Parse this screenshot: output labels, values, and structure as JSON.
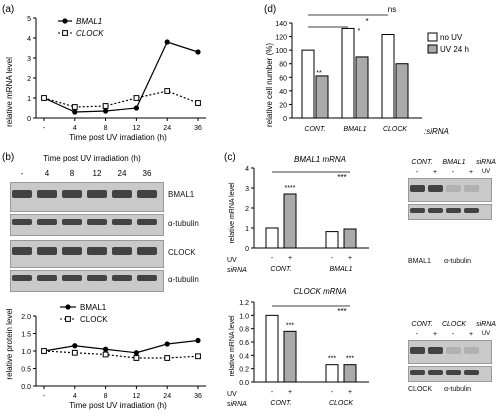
{
  "panel_a": {
    "letter": "(a)",
    "xlabel": "Time post UV irradiation (h)",
    "ylabel": "relative mRNA level",
    "legend": [
      "BMAL1",
      "CLOCK"
    ]
  },
  "panel_b": {
    "letter": "(b)",
    "title": "Time post UV irradiation (h)",
    "lanes": [
      "-",
      "4",
      "8",
      "12",
      "24",
      "36"
    ],
    "blot_labels": [
      "BMAL1",
      "α-tubulin",
      "CLOCK",
      "α-tubulin"
    ],
    "xlabel": "Time post UV irradiation (h)",
    "ylabel": "relative protein level",
    "legend": [
      "BMAL1",
      "CLOCK"
    ]
  },
  "panel_c": {
    "letter": "(c)",
    "top_title": "BMAL1 mRNA",
    "bottom_title": "CLOCK mRNA",
    "ylabel": "relative mRNA level",
    "uv_label": "UV",
    "sirna_label": "siRNA",
    "groups_top": [
      "CONT.",
      "BMAL1"
    ],
    "groups_bottom": [
      "CONT.",
      "CLOCK"
    ],
    "uv_signs": [
      "-",
      "+",
      "-",
      "+"
    ],
    "stars_top": [
      "****",
      "***"
    ],
    "stars_bottom": [
      "***",
      "***",
      "***",
      "***"
    ],
    "blot_top": {
      "header": [
        "CONT.",
        "BMAL1",
        "siRNA"
      ],
      "signs": [
        "-",
        "+",
        "-",
        "+"
      ],
      "uv": "UV",
      "labels": [
        "BMAL1",
        "α-tubulin"
      ]
    },
    "blot_bottom": {
      "header": [
        "CONT.",
        "CLOCK",
        "siRNA"
      ],
      "signs": [
        "-",
        "+",
        "-",
        "+"
      ],
      "uv": "UV",
      "labels": [
        "CLOCK",
        "α-tubulin"
      ]
    }
  },
  "panel_d": {
    "letter": "(d)",
    "ylabel": "relative cell number (%)",
    "groups": [
      "CONT.",
      "BMAL1",
      "CLOCK"
    ],
    "sirna_label": ":siRNA",
    "legend": [
      "no UV",
      "UV 24 h"
    ],
    "sig": [
      "ns",
      "*",
      "**",
      "*"
    ]
  },
  "chart_data": [
    {
      "type": "line",
      "panel": "a",
      "x": [
        "-",
        "4",
        "8",
        "12",
        "24",
        "36"
      ],
      "series": [
        {
          "name": "BMAL1",
          "values": [
            1.0,
            0.3,
            0.35,
            0.5,
            3.8,
            3.3
          ]
        },
        {
          "name": "CLOCK",
          "values": [
            1.0,
            0.55,
            0.6,
            1.0,
            1.35,
            0.75
          ]
        }
      ],
      "ylim": [
        0,
        5
      ],
      "yticks": [
        0,
        1,
        2,
        3,
        4,
        5
      ]
    },
    {
      "type": "line",
      "panel": "b",
      "x": [
        "-",
        "4",
        "8",
        "12",
        "24",
        "36"
      ],
      "series": [
        {
          "name": "BMAL1",
          "values": [
            1.0,
            1.15,
            1.05,
            0.95,
            1.2,
            1.3
          ]
        },
        {
          "name": "CLOCK",
          "values": [
            1.0,
            0.95,
            0.9,
            0.8,
            0.8,
            0.85
          ]
        }
      ],
      "ylim": [
        0,
        2.0
      ],
      "yticks": [
        0,
        0.5,
        1.0,
        1.5,
        2.0
      ]
    },
    {
      "type": "bar",
      "panel": "c-top",
      "categories": [
        "CONT. -",
        "CONT. +",
        "BMAL1 -",
        "BMAL1 +"
      ],
      "values": [
        1.0,
        2.7,
        0.82,
        0.95
      ],
      "ylim": [
        0,
        4
      ],
      "yticks": [
        0,
        1,
        2,
        3,
        4
      ]
    },
    {
      "type": "bar",
      "panel": "c-bottom",
      "categories": [
        "CONT. -",
        "CONT. +",
        "CLOCK -",
        "CLOCK +"
      ],
      "values": [
        1.0,
        0.76,
        0.26,
        0.26
      ],
      "ylim": [
        0,
        1.2
      ],
      "yticks": [
        0.0,
        0.2,
        0.4,
        0.6,
        0.8,
        1.0,
        1.2
      ]
    },
    {
      "type": "bar",
      "panel": "d",
      "categories": [
        "CONT.",
        "BMAL1",
        "CLOCK"
      ],
      "series": [
        {
          "name": "no UV",
          "values": [
            100,
            132,
            123
          ]
        },
        {
          "name": "UV 24 h",
          "values": [
            62,
            90,
            80
          ]
        }
      ],
      "ylim": [
        0,
        140
      ],
      "yticks": [
        0,
        20,
        40,
        60,
        80,
        100,
        120,
        140
      ]
    }
  ]
}
